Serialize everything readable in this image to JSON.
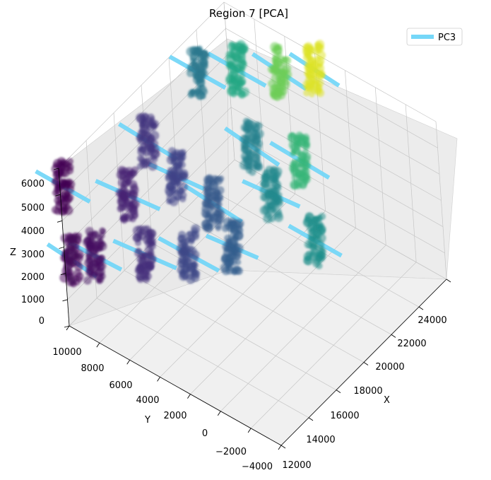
{
  "chart_data": {
    "type": "scatter",
    "title": "Region 7 [PCA]",
    "xlabel": "X",
    "ylabel": "Y",
    "zlabel": "Z",
    "x_ticks": [
      "12000",
      "14000",
      "16000",
      "18000",
      "20000",
      "22000",
      "24000"
    ],
    "y_ticks": [
      "−4000",
      "−2000",
      "0",
      "2000",
      "4000",
      "6000",
      "8000",
      "10000"
    ],
    "z_ticks": [
      "0",
      "1000",
      "2000",
      "3000",
      "4000",
      "5000",
      "6000"
    ],
    "legend": {
      "placement": "top-right",
      "entries": [
        {
          "label": "PC3",
          "color": "#75d7f8"
        }
      ]
    },
    "grid": true,
    "colormap": "viridis",
    "clusters": [
      {
        "x": 12200,
        "y": 10000,
        "z": 5200,
        "c": 0.0
      },
      {
        "x": 12300,
        "y": 9800,
        "z": 2400,
        "c": 0.02
      },
      {
        "x": 13100,
        "y": 9000,
        "z": 2400,
        "c": 0.04
      },
      {
        "x": 14200,
        "y": 7600,
        "z": 4600,
        "c": 0.1
      },
      {
        "x": 14000,
        "y": 6500,
        "z": 2800,
        "c": 0.14
      },
      {
        "x": 16500,
        "y": 8300,
        "z": 5200,
        "c": 0.16
      },
      {
        "x": 16800,
        "y": 6800,
        "z": 4200,
        "c": 0.2
      },
      {
        "x": 15500,
        "y": 5000,
        "z": 2500,
        "c": 0.22
      },
      {
        "x": 17200,
        "y": 4800,
        "z": 3600,
        "c": 0.28
      },
      {
        "x": 17100,
        "y": 3600,
        "z": 2400,
        "c": 0.3
      },
      {
        "x": 20300,
        "y": 8400,
        "z": 5800,
        "c": 0.4
      },
      {
        "x": 19800,
        "y": 4500,
        "z": 4500,
        "c": 0.44
      },
      {
        "x": 19400,
        "y": 3000,
        "z": 3400,
        "c": 0.47
      },
      {
        "x": 19900,
        "y": 700,
        "z": 2100,
        "c": 0.5
      },
      {
        "x": 21800,
        "y": 7200,
        "z": 5500,
        "c": 0.6
      },
      {
        "x": 21000,
        "y": 2500,
        "z": 4000,
        "c": 0.66
      },
      {
        "x": 22700,
        "y": 5200,
        "z": 5600,
        "c": 0.78
      },
      {
        "x": 23700,
        "y": 3800,
        "z": 5600,
        "c": 0.95
      }
    ]
  }
}
